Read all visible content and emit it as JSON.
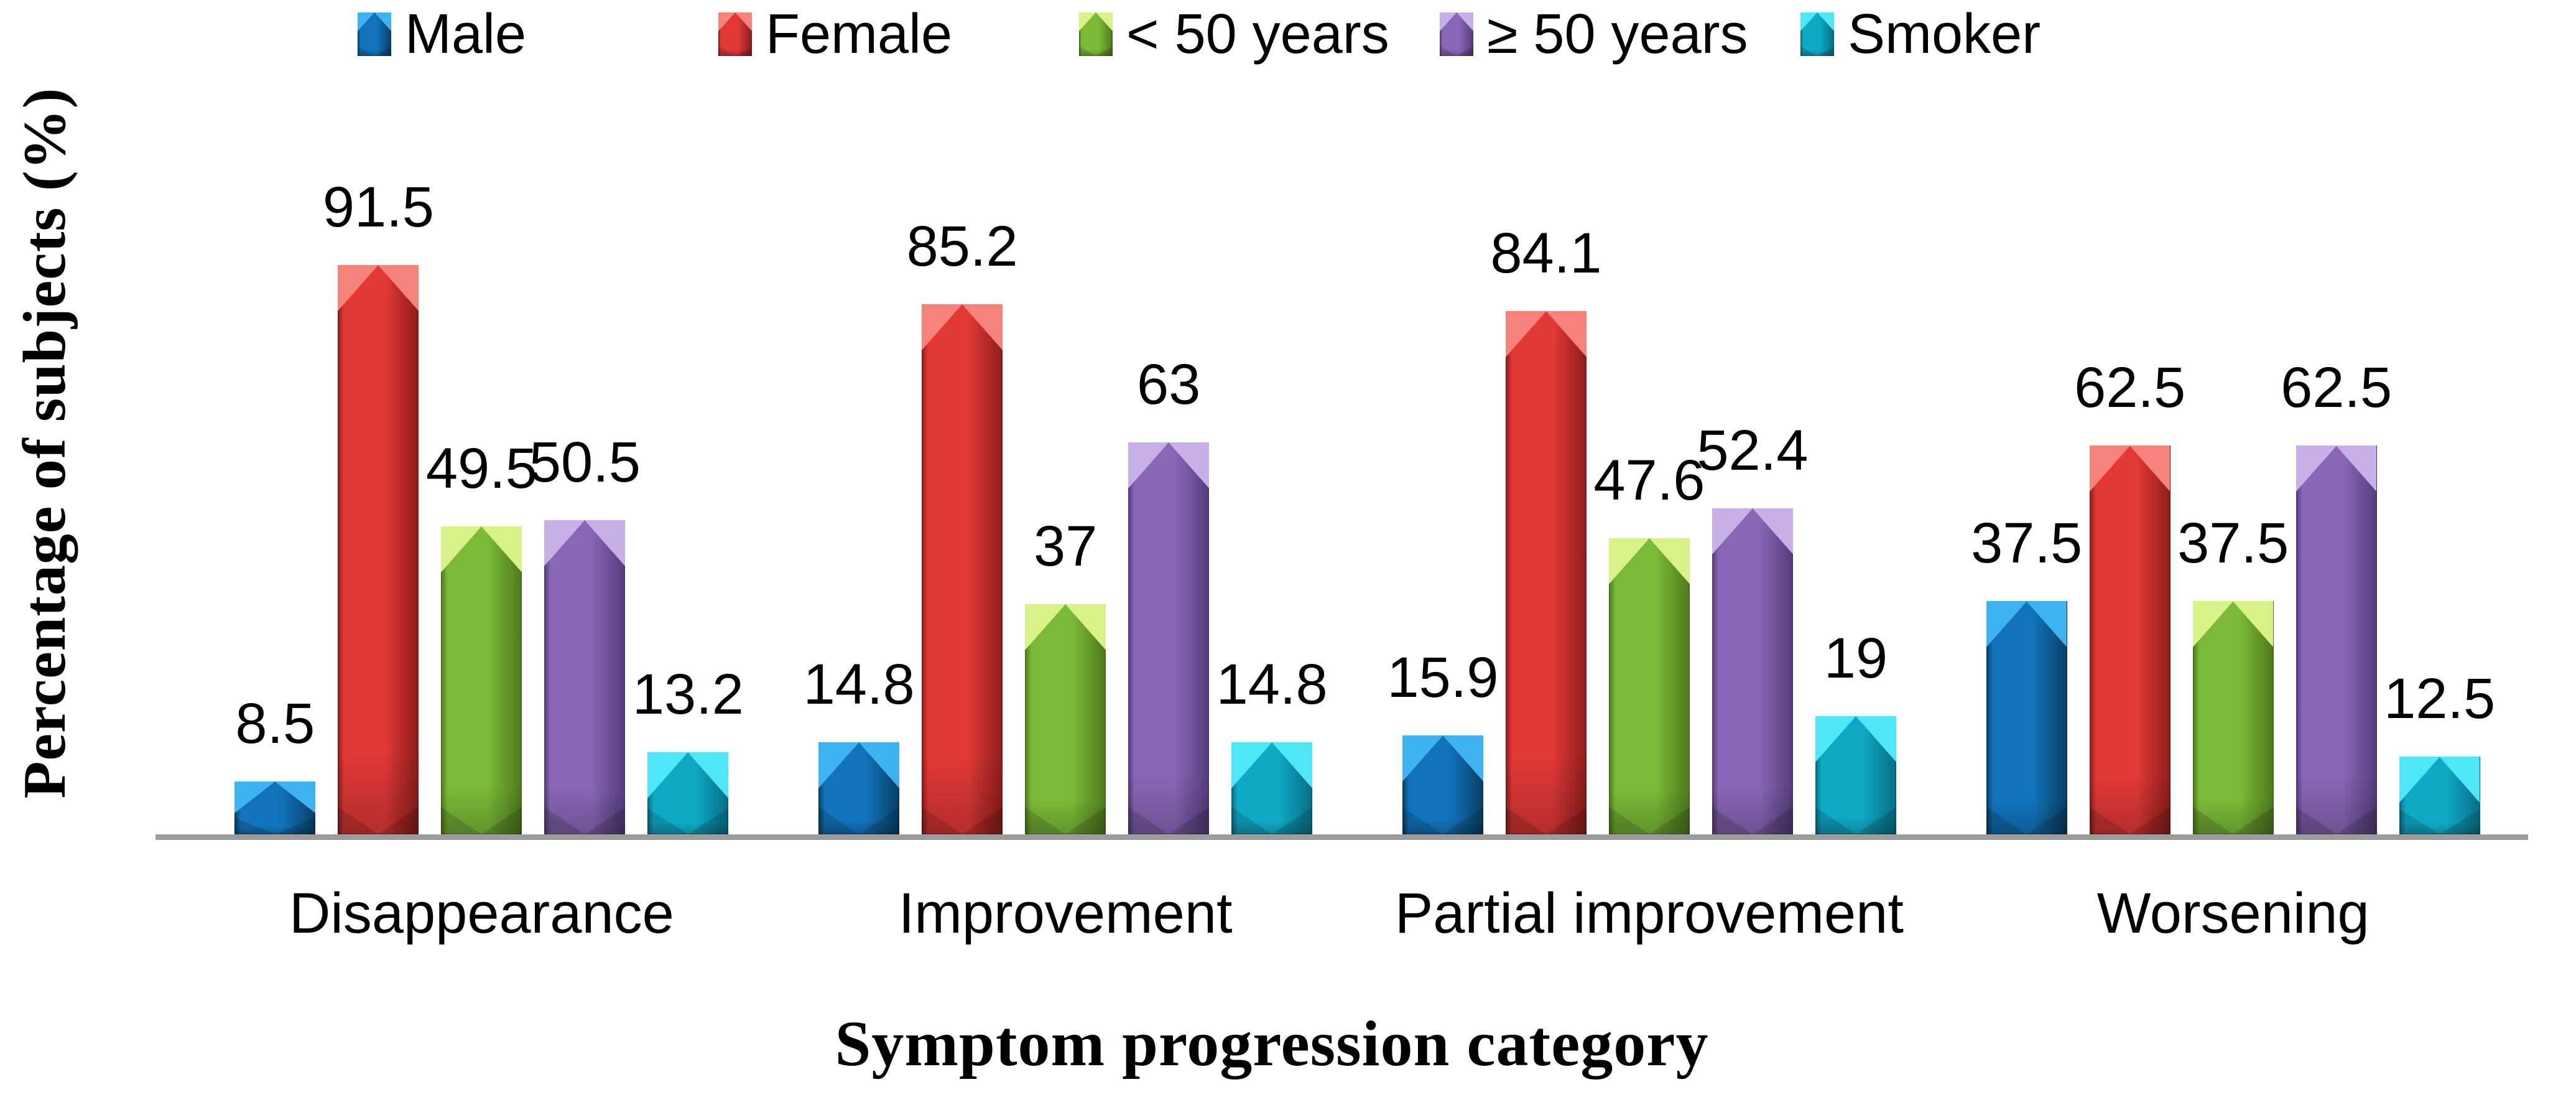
{
  "chart_data": {
    "type": "bar",
    "title": "",
    "xlabel": "Symptom progression category",
    "ylabel": "Percentage of subjects (%)",
    "ylim": [
      0,
      100
    ],
    "grid": false,
    "legend_position": "top",
    "axis_line_color": "#9d9d9d",
    "categories": [
      "Disappearance",
      "Improvement",
      "Partial improvement",
      "Worsening"
    ],
    "series": [
      {
        "name": "Male",
        "color": "#1173BB",
        "color_light": "#3FB3F2",
        "color_dark": "#083F66",
        "values": [
          8.5,
          14.8,
          15.9,
          37.5
        ],
        "labels": [
          "8.5",
          "14.8",
          "15.9",
          "37.5"
        ]
      },
      {
        "name": "Female",
        "color": "#E23936",
        "color_light": "#F6837B",
        "color_dark": "#8E1D1B",
        "values": [
          91.5,
          85.2,
          84.1,
          62.5
        ],
        "labels": [
          "91.5",
          "85.2",
          "84.1",
          "62.5"
        ]
      },
      {
        "name": "< 50 years",
        "color": "#7BB937",
        "color_light": "#D9F189",
        "color_dark": "#4E7A1D",
        "values": [
          49.5,
          37,
          47.6,
          37.5
        ],
        "labels": [
          "49.5",
          "37",
          "47.6",
          "37.5"
        ]
      },
      {
        "name": "≥ 50 years",
        "color": "#8A66B6",
        "color_light": "#C7B0E5",
        "color_dark": "#553D7D",
        "values": [
          50.5,
          63,
          52.4,
          62.5
        ],
        "labels": [
          "50.5",
          "63",
          "52.4",
          "62.5"
        ]
      },
      {
        "name": "Smoker",
        "color": "#0FA9C6",
        "color_light": "#4FE6F8",
        "color_dark": "#076F85",
        "values": [
          13.2,
          14.8,
          19,
          12.5
        ],
        "labels": [
          "13.2",
          "14.8",
          "19",
          "12.5"
        ]
      }
    ]
  }
}
